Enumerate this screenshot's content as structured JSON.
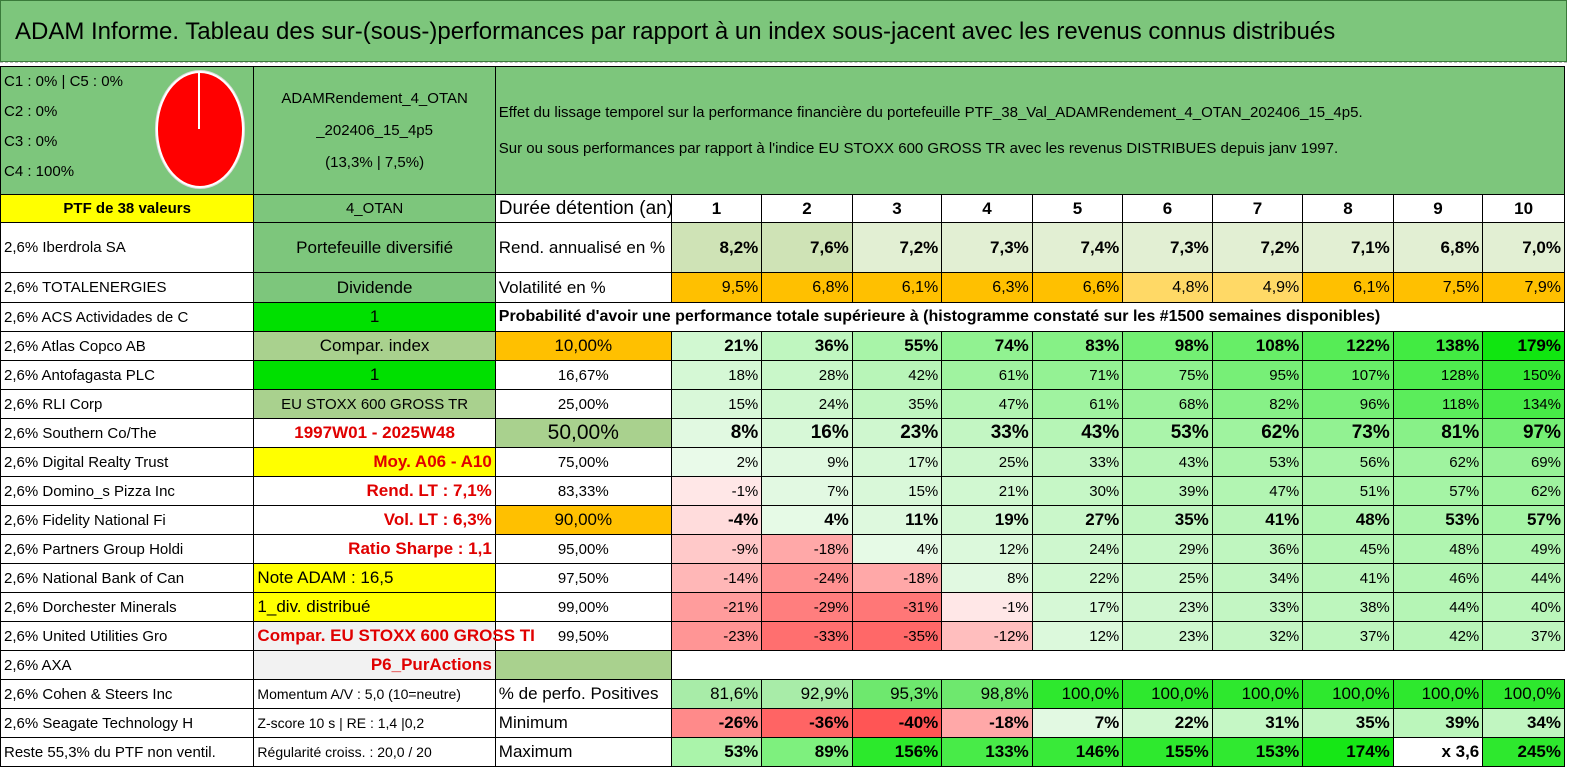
{
  "title": "ADAM Informe. Tableau des sur-(sous-)performances par rapport à un index sous-jacent avec les revenus connus distribués",
  "legend": [
    "C1 : 0% | C5 : 0%",
    "C2 : 0%",
    "C3 : 0%",
    "C4 : 100%"
  ],
  "fund_name": "ADAMRendement_4_OTAN _202406_15_4p5",
  "fund_stats": "(13,3% | 7,5%)",
  "header_text_1": "Effet du lissage temporel sur la performance financière du portefeuille PTF_38_Val_ADAMRendement_4_OTAN_202406_15_4p5.",
  "header_text_2": "Sur ou sous performances par rapport à l'indice EU STOXX 600 GROSS TR avec les revenus DISTRIBUES depuis janv 1997.",
  "ptf_label": "PTF de 38 valeurs",
  "code": "4_OTAN",
  "duration_label": "Durée détention (an)",
  "years": [
    "1",
    "2",
    "3",
    "4",
    "5",
    "6",
    "7",
    "8",
    "9",
    "10"
  ],
  "holdings": [
    "2,6% Iberdrola SA",
    "2,6% TOTALENERGIES",
    "2,6% ACS Actividades de C",
    "2,6% Atlas Copco AB",
    "2,6% Antofagasta PLC",
    "2,6% RLI Corp",
    "2,6% Southern Co/The",
    "2,6% Digital Realty Trust",
    "2,6% Domino_s Pizza Inc",
    "2,6% Fidelity National Fi",
    "2,6% Partners Group Holdi",
    "2,6% National Bank of Can",
    "2,6% Dorchester Minerals",
    "2,6% United Utilities Gro",
    "2,6% AXA",
    "2,6% Cohen & Steers Inc",
    "2,6% Seagate Technology H",
    "Reste 55,3% du PTF non ventil."
  ],
  "mid_col": [
    "Portefeuille diversifié",
    "Dividende",
    "1",
    "Compar. index",
    "1",
    "EU STOXX 600 GROSS TR",
    "1997W01 - 2025W48",
    "Moy. A06 - A10",
    "Rend. LT : 7,1%",
    "Vol. LT : 6,3%",
    "Ratio Sharpe : 1,1",
    "Note ADAM : 16,5",
    "1_div. distribué",
    "Compar. EU STOXX 600 GROSS TI",
    "P6_PurActions",
    "Momentum A/V : 5,0 (10=neutre)",
    "Z-score 10 s | RE : 1,4 |0,2",
    "Régularité croiss. : 20,0 / 20"
  ],
  "rend_label": "Rend. annualisé en %",
  "rend": [
    "8,2%",
    "7,6%",
    "7,2%",
    "7,3%",
    "7,4%",
    "7,3%",
    "7,2%",
    "7,1%",
    "6,8%",
    "7,0%"
  ],
  "vol_label": "Volatilité en %",
  "vol": [
    "9,5%",
    "6,8%",
    "6,1%",
    "6,3%",
    "6,6%",
    "4,8%",
    "4,9%",
    "6,1%",
    "7,5%",
    "7,9%"
  ],
  "prob_label": "Probabilité d'avoir une performance totale supérieure à (histogramme constaté sur les #1500 semaines disponibles)",
  "prob_rows": [
    {
      "p": "10,00%",
      "v": [
        "21%",
        "36%",
        "55%",
        "74%",
        "83%",
        "98%",
        "108%",
        "122%",
        "138%",
        "179%"
      ]
    },
    {
      "p": "16,67%",
      "v": [
        "18%",
        "28%",
        "42%",
        "61%",
        "71%",
        "75%",
        "95%",
        "107%",
        "128%",
        "150%"
      ]
    },
    {
      "p": "25,00%",
      "v": [
        "15%",
        "24%",
        "35%",
        "47%",
        "61%",
        "68%",
        "82%",
        "96%",
        "118%",
        "134%"
      ]
    },
    {
      "p": "50,00%",
      "v": [
        "8%",
        "16%",
        "23%",
        "33%",
        "43%",
        "53%",
        "62%",
        "73%",
        "81%",
        "97%"
      ]
    },
    {
      "p": "75,00%",
      "v": [
        "2%",
        "9%",
        "17%",
        "25%",
        "33%",
        "43%",
        "53%",
        "56%",
        "62%",
        "69%"
      ]
    },
    {
      "p": "83,33%",
      "v": [
        "-1%",
        "7%",
        "15%",
        "21%",
        "30%",
        "39%",
        "47%",
        "51%",
        "57%",
        "62%"
      ]
    },
    {
      "p": "90,00%",
      "v": [
        "-4%",
        "4%",
        "11%",
        "19%",
        "27%",
        "35%",
        "41%",
        "48%",
        "53%",
        "57%"
      ]
    },
    {
      "p": "95,00%",
      "v": [
        "-9%",
        "-18%",
        "4%",
        "12%",
        "24%",
        "29%",
        "36%",
        "45%",
        "48%",
        "49%"
      ]
    },
    {
      "p": "97,50%",
      "v": [
        "-14%",
        "-24%",
        "-18%",
        "8%",
        "22%",
        "25%",
        "34%",
        "41%",
        "46%",
        "44%"
      ]
    },
    {
      "p": "99,00%",
      "v": [
        "-21%",
        "-29%",
        "-31%",
        "-1%",
        "17%",
        "23%",
        "33%",
        "38%",
        "44%",
        "40%"
      ]
    },
    {
      "p": "99,50%",
      "v": [
        "-23%",
        "-33%",
        "-35%",
        "-12%",
        "12%",
        "23%",
        "32%",
        "37%",
        "42%",
        "37%"
      ]
    }
  ],
  "pos_label": "% de perfo. Positives",
  "pos": [
    "81,6%",
    "92,9%",
    "95,3%",
    "98,8%",
    "100,0%",
    "100,0%",
    "100,0%",
    "100,0%",
    "100,0%",
    "100,0%"
  ],
  "min_label": "Minimum",
  "min": [
    "-26%",
    "-36%",
    "-40%",
    "-18%",
    "7%",
    "22%",
    "31%",
    "35%",
    "39%",
    "34%"
  ],
  "max_label": "Maximum",
  "max": [
    "53%",
    "89%",
    "156%",
    "133%",
    "146%",
    "155%",
    "153%",
    "174%",
    "x 3,6",
    "245%"
  ],
  "colors": {
    "title_bg": "#7dc67c",
    "pie": "#ff0000",
    "highlight": "#ffff00",
    "orange": "#ffc000",
    "lime": "#00e000"
  }
}
